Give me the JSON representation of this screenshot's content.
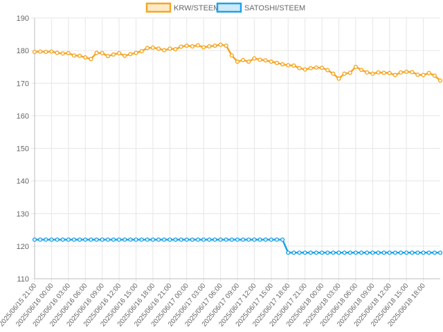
{
  "chart_data": {
    "type": "line",
    "title": "",
    "xlabel": "",
    "ylabel": "",
    "ylim": [
      110,
      190
    ],
    "y_ticks": [
      110,
      120,
      130,
      140,
      150,
      160,
      170,
      180,
      190
    ],
    "x_tick_labels": [
      "2025/06/15 21:00",
      "2025/06/16 00:00",
      "2025/06/16 03:00",
      "2025/06/16 06:00",
      "2025/06/16 09:00",
      "2025/06/16 12:00",
      "2025/06/16 15:00",
      "2025/06/16 18:00",
      "2025/06/16 21:00",
      "2025/06/17 00:00",
      "2025/06/17 03:00",
      "2025/06/17 06:00",
      "2025/06/17 09:00",
      "2025/06/17 12:00",
      "2025/06/17 15:00",
      "2025/06/17 18:00",
      "2025/06/17 21:00",
      "2025/06/18 00:00",
      "2025/06/18 03:00",
      "2025/06/18 06:00",
      "2025/06/18 09:00",
      "2025/06/18 12:00",
      "2025/06/18 15:00",
      "2025/06/18 18:00"
    ],
    "grid": true,
    "legend_position": "top",
    "series": [
      {
        "name": "KRW/STEEM",
        "color": "#f5a623",
        "values": [
          179.6,
          179.7,
          179.6,
          179.7,
          179.3,
          179.1,
          179.2,
          178.5,
          178.4,
          177.9,
          177.4,
          179.3,
          179.2,
          178.3,
          178.8,
          179.2,
          178.4,
          178.9,
          179.3,
          179.8,
          180.8,
          180.9,
          180.6,
          180.1,
          180.6,
          180.4,
          181.2,
          181.5,
          181.3,
          181.6,
          181.0,
          181.3,
          181.5,
          181.8,
          181.5,
          178.5,
          176.6,
          177.1,
          176.6,
          177.6,
          177.2,
          177.0,
          176.6,
          176.2,
          175.8,
          175.5,
          175.4,
          174.6,
          174.2,
          174.6,
          174.8,
          174.7,
          174.0,
          172.9,
          171.4,
          172.9,
          173.2,
          175.0,
          174.1,
          173.3,
          172.9,
          173.3,
          173.2,
          173.1,
          172.5,
          173.3,
          173.5,
          173.4,
          172.6,
          172.5,
          173.1,
          172.3,
          170.8
        ]
      },
      {
        "name": "SATOSHI/STEEM",
        "color": "#1aa3e8",
        "values": [
          122,
          122,
          122,
          122,
          122,
          122,
          122,
          122,
          122,
          122,
          122,
          122,
          122,
          122,
          122,
          122,
          122,
          122,
          122,
          122,
          122,
          122,
          122,
          122,
          122,
          122,
          122,
          122,
          122,
          122,
          122,
          122,
          122,
          122,
          122,
          122,
          122,
          122,
          122,
          122,
          122,
          122,
          122,
          122,
          122,
          118,
          118,
          118,
          118,
          118,
          118,
          118,
          118,
          118,
          118,
          118,
          118,
          118,
          118,
          118,
          118,
          118,
          118,
          118,
          118,
          118,
          118,
          118,
          118,
          118,
          118,
          118,
          118
        ]
      }
    ]
  }
}
